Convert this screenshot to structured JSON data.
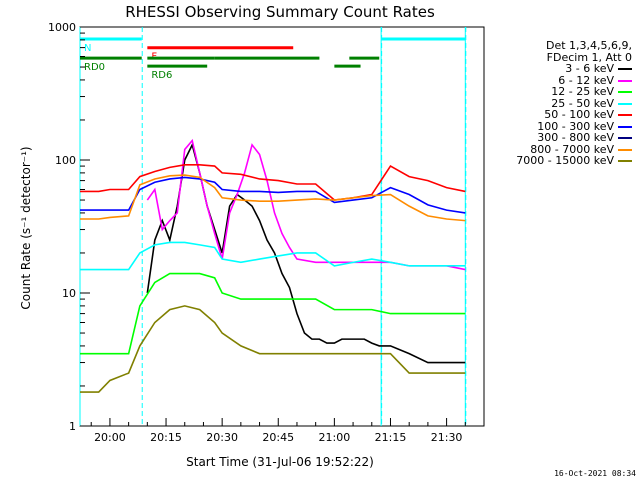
{
  "chart_data": {
    "type": "line",
    "title": "RHESSI Observing Summary Count Rates",
    "xlabel": "Start Time (31-Jul-06 19:52:22)",
    "ylabel": "Count Rate (s⁻¹ detector⁻¹)",
    "y_scale": "log",
    "ylim": [
      1,
      1000
    ],
    "xlim_minutes": [
      -8,
      100
    ],
    "x_ticks": [
      {
        "label": "20:00",
        "min": 0
      },
      {
        "label": "20:15",
        "min": 15
      },
      {
        "label": "20:30",
        "min": 30
      },
      {
        "label": "20:45",
        "min": 45
      },
      {
        "label": "21:00",
        "min": 60
      },
      {
        "label": "21:15",
        "min": 75
      },
      {
        "label": "21:30",
        "min": 90
      }
    ],
    "y_ticks": [
      {
        "label": "1",
        "v": 1
      },
      {
        "label": "10",
        "v": 10
      },
      {
        "label": "100",
        "v": 100
      },
      {
        "label": "1000",
        "v": 1000
      }
    ],
    "legend_header": [
      "Det 1,3,4,5,6,9,",
      "FDecim 1, Att 0"
    ],
    "series": [
      {
        "name": "3 - 6 keV",
        "color": "#000000",
        "x": [
          -8,
          6,
          8,
          10,
          12,
          14,
          16,
          18,
          20,
          22,
          24,
          26,
          28,
          30,
          32,
          34,
          36,
          38,
          40,
          42,
          44,
          46,
          48,
          50,
          52,
          54,
          56,
          58,
          60,
          62,
          64,
          66,
          68,
          70,
          72,
          75,
          80,
          85,
          90,
          95
        ],
        "y": [
          0,
          0,
          0,
          10,
          25,
          35,
          25,
          45,
          100,
          130,
          80,
          45,
          30,
          20,
          45,
          55,
          50,
          45,
          35,
          25,
          20,
          14,
          11,
          7,
          5,
          4.5,
          4.5,
          4.2,
          4.2,
          4.5,
          4.5,
          4.5,
          4.5,
          4.2,
          4,
          4,
          3.5,
          3,
          3,
          3
        ]
      },
      {
        "name": "6 - 12 keV",
        "color": "#ff00ff",
        "x": [
          -8,
          6,
          8,
          10,
          12,
          14,
          16,
          18,
          20,
          22,
          24,
          26,
          28,
          30,
          32,
          34,
          36,
          38,
          40,
          42,
          44,
          46,
          48,
          50,
          55,
          60,
          65,
          70,
          75,
          80,
          85,
          90,
          95
        ],
        "y": [
          0,
          0,
          0,
          50,
          60,
          30,
          35,
          40,
          120,
          140,
          80,
          45,
          28,
          18,
          40,
          55,
          80,
          130,
          110,
          70,
          40,
          28,
          22,
          18,
          17,
          17,
          17,
          17,
          17,
          16,
          16,
          16,
          15
        ]
      },
      {
        "name": "12 - 25 keV",
        "color": "#00ff00",
        "x": [
          -8,
          -3,
          0,
          5,
          8,
          12,
          16,
          20,
          24,
          28,
          30,
          35,
          40,
          45,
          50,
          55,
          60,
          65,
          70,
          75,
          80,
          85,
          90,
          95
        ],
        "y": [
          3.5,
          3.5,
          3.5,
          3.5,
          8,
          12,
          14,
          14,
          14,
          13,
          10,
          9,
          9,
          9,
          9,
          9,
          7.5,
          7.5,
          7.5,
          7,
          7,
          7,
          7,
          7
        ]
      },
      {
        "name": "25 - 50 keV",
        "color": "#00ffff",
        "x": [
          -8,
          -3,
          0,
          5,
          8,
          12,
          16,
          20,
          24,
          28,
          30,
          35,
          40,
          45,
          50,
          55,
          60,
          65,
          70,
          75,
          80,
          85,
          90,
          95
        ],
        "y": [
          15,
          15,
          15,
          15,
          20,
          23,
          24,
          24,
          23,
          22,
          18,
          17,
          18,
          19,
          20,
          20,
          16,
          17,
          18,
          17,
          16,
          16,
          16,
          16
        ]
      },
      {
        "name": "50 - 100 keV",
        "color": "#ff0000",
        "x": [
          -8,
          -3,
          0,
          5,
          8,
          12,
          16,
          20,
          24,
          28,
          30,
          35,
          40,
          45,
          50,
          55,
          60,
          65,
          70,
          75,
          80,
          85,
          90,
          95
        ],
        "y": [
          58,
          58,
          60,
          60,
          75,
          82,
          88,
          92,
          92,
          90,
          80,
          78,
          72,
          70,
          66,
          66,
          50,
          52,
          55,
          90,
          75,
          70,
          62,
          58
        ]
      },
      {
        "name": "100 - 300 keV",
        "color": "#0000ff",
        "x": [
          -8,
          -3,
          0,
          5,
          8,
          12,
          16,
          20,
          24,
          28,
          30,
          35,
          40,
          45,
          50,
          55,
          60,
          65,
          70,
          75,
          80,
          85,
          90,
          95
        ],
        "y": [
          42,
          42,
          42,
          42,
          60,
          68,
          72,
          74,
          72,
          68,
          60,
          58,
          58,
          57,
          58,
          58,
          48,
          50,
          52,
          62,
          55,
          46,
          42,
          40
        ]
      },
      {
        "name": "300 - 800 keV",
        "color": "#000080",
        "x": [
          -8,
          95
        ],
        "y": [
          0,
          0
        ]
      },
      {
        "name": "800 - 7000 keV",
        "color": "#ff8c00",
        "x": [
          -8,
          -3,
          0,
          5,
          8,
          12,
          16,
          20,
          24,
          28,
          30,
          35,
          40,
          45,
          50,
          55,
          60,
          65,
          70,
          75,
          80,
          85,
          90,
          95
        ],
        "y": [
          36,
          36,
          37,
          38,
          65,
          72,
          76,
          77,
          74,
          62,
          52,
          50,
          49,
          49,
          50,
          51,
          50,
          52,
          54,
          55,
          45,
          38,
          36,
          35
        ]
      },
      {
        "name": "7000 - 15000 keV",
        "color": "#808000",
        "x": [
          -8,
          -3,
          0,
          5,
          8,
          12,
          16,
          20,
          24,
          28,
          30,
          35,
          40,
          45,
          50,
          55,
          60,
          65,
          70,
          75,
          80,
          85,
          90,
          95
        ],
        "y": [
          1.8,
          1.8,
          2.2,
          2.5,
          4,
          6,
          7.5,
          8,
          7.5,
          6,
          5,
          4,
          3.5,
          3.5,
          3.5,
          3.5,
          3.5,
          3.5,
          3.5,
          3.5,
          2.5,
          2.5,
          2.5,
          2.5
        ]
      }
    ],
    "annotations": {
      "cyan_vlines_solid_min": [
        -8,
        72.5,
        95
      ],
      "cyan_vlines_dashed_min": [
        8.5,
        72.5,
        95
      ],
      "bars": [
        {
          "label": "N",
          "color": "#00ffff",
          "segments": [
            [
              -8,
              8.5
            ],
            [
              72.5,
              95
            ]
          ],
          "y_frac": 0.03
        },
        {
          "label": "F",
          "color": "#ff0000",
          "segments": [
            [
              10,
              49
            ]
          ],
          "y_frac": 0.052
        },
        {
          "label": "RD0",
          "color": "#008000",
          "segments": [
            [
              -8,
              8.5
            ],
            [
              10,
              28
            ],
            [
              28,
              56
            ],
            [
              64,
              72
            ]
          ],
          "y_frac": 0.078
        },
        {
          "label": "RD6",
          "color": "#008000",
          "segments": [
            [
              10,
              26
            ],
            [
              60,
              67
            ]
          ],
          "y_frac": 0.098
        }
      ]
    }
  },
  "timestamp": "16-Oct-2021 08:34"
}
